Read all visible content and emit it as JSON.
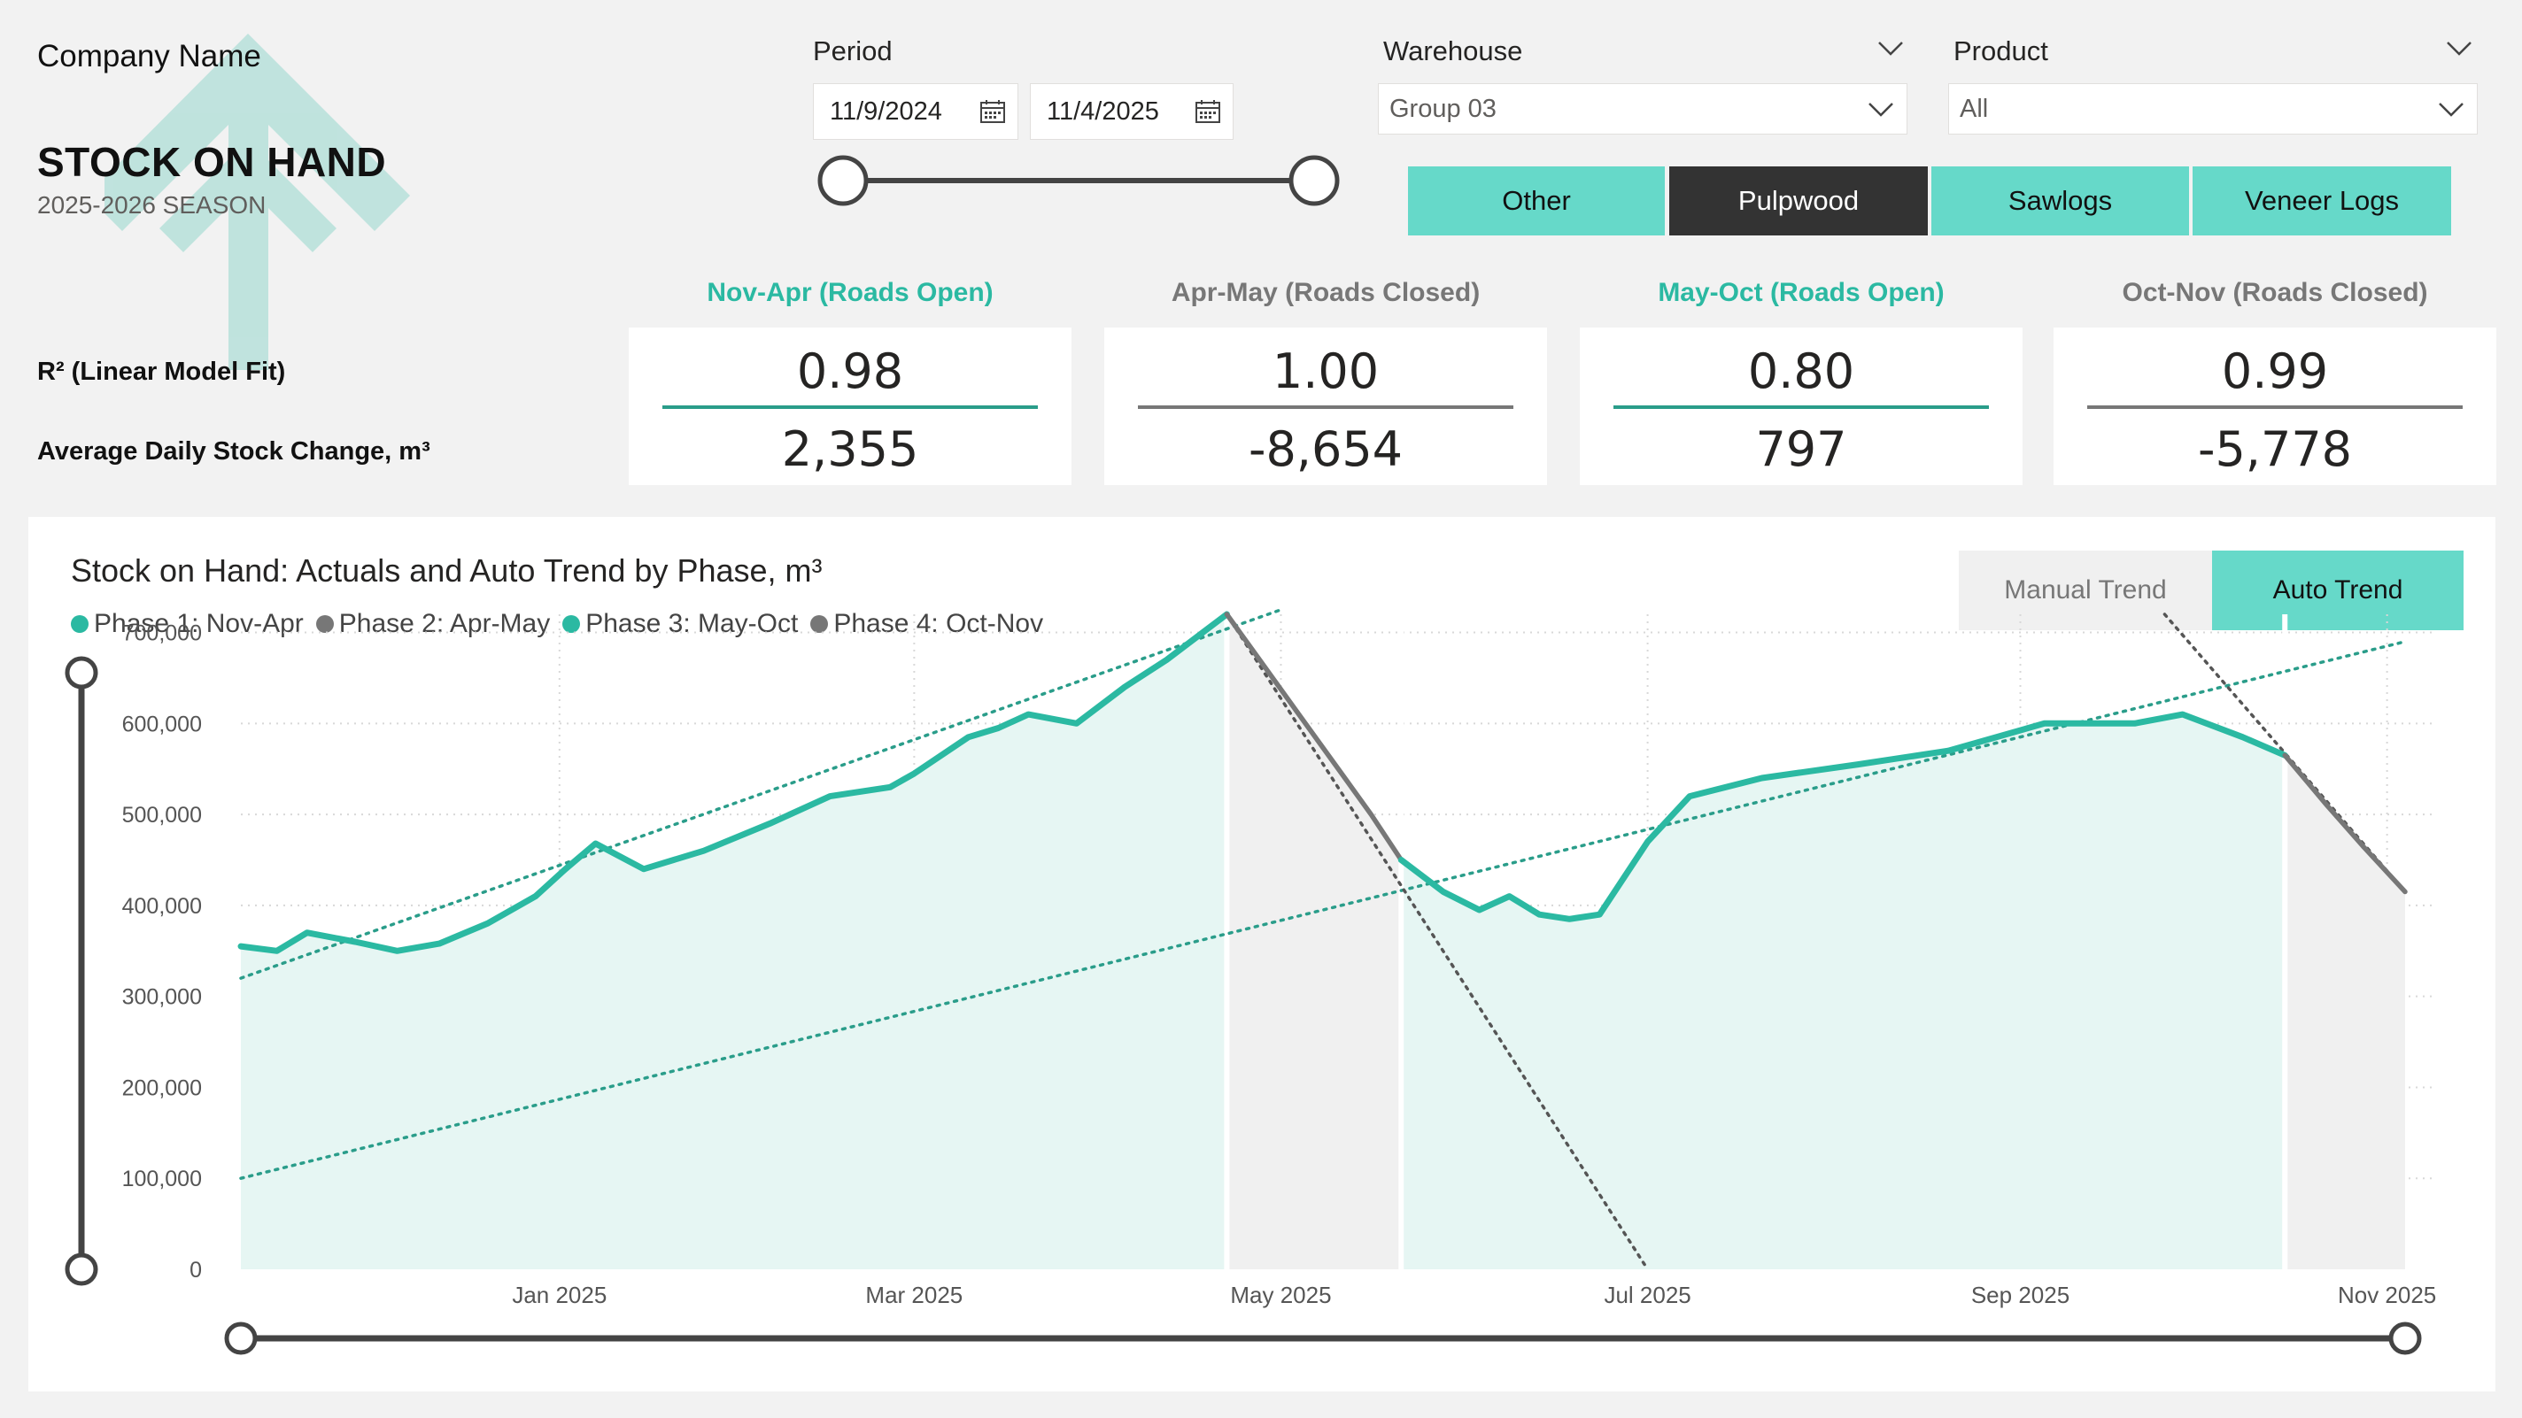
{
  "brand": {
    "company": "Company Name",
    "title": "STOCK ON HAND",
    "season": "2025-2026 SEASON"
  },
  "period": {
    "label": "Period",
    "start": "11/9/2024",
    "end": "11/4/2025"
  },
  "warehouse": {
    "label": "Warehouse",
    "value": "Group 03"
  },
  "product": {
    "label": "Product",
    "value": "All"
  },
  "product_buttons": [
    {
      "label": "Other",
      "active": false
    },
    {
      "label": "Pulpwood",
      "active": true
    },
    {
      "label": "Sawlogs",
      "active": false
    },
    {
      "label": "Veneer Logs",
      "active": false
    }
  ],
  "kpi": {
    "row1_label": "R² (Linear Model Fit)",
    "row2_label": "Average Daily Stock Change, m³",
    "phases": [
      {
        "title": "Nov-Apr (Roads Open)",
        "r2": "0.98",
        "avg": "2,355",
        "color": "#2bb9a2"
      },
      {
        "title": "Apr-May (Roads Closed)",
        "r2": "1.00",
        "avg": "-8,654",
        "color": "#777777"
      },
      {
        "title": "May-Oct (Roads Open)",
        "r2": "0.80",
        "avg": "797",
        "color": "#2bb9a2"
      },
      {
        "title": "Oct-Nov (Roads Closed)",
        "r2": "0.99",
        "avg": "-5,778",
        "color": "#777777"
      }
    ]
  },
  "chart_panel": {
    "title": "Stock on Hand: Actuals and Auto Trend by Phase, m³",
    "toggle_manual": "Manual Trend",
    "toggle_auto": "Auto Trend",
    "active_toggle": "Auto Trend"
  },
  "colors": {
    "teal": "#2bb9a2",
    "teal_button": "#66d9c9",
    "grey": "#777777",
    "dark_button": "#333333"
  },
  "chart_data": {
    "type": "area",
    "title": "Stock on Hand: Actuals and Auto Trend by Phase, m³",
    "xlabel": "",
    "ylabel": "",
    "xlim": [
      "2024-11-09",
      "2025-11-04"
    ],
    "ylim": [
      0,
      720000
    ],
    "y_ticks": [
      "700,000",
      "600,000",
      "500,000",
      "400,000",
      "300,000",
      "200,000",
      "100,000",
      "0"
    ],
    "y_tick_values": [
      700000,
      600000,
      500000,
      400000,
      300000,
      200000,
      100000,
      0
    ],
    "x_ticks": [
      "Jan 2025",
      "Mar 2025",
      "May 2025",
      "Jul 2025",
      "Sep 2025",
      "Nov 2025"
    ],
    "x_tick_dates": [
      "2025-01-01",
      "2025-03-01",
      "2025-05-01",
      "2025-07-01",
      "2025-09-01",
      "2025-11-01"
    ],
    "legend_position": "top-left",
    "grid": true,
    "series": [
      {
        "name": "Phase 1: Nov-Apr",
        "color": "#2bb9a2",
        "x": [
          "2024-11-09",
          "2024-11-15",
          "2024-11-20",
          "2024-11-28",
          "2024-12-05",
          "2024-12-12",
          "2024-12-20",
          "2024-12-28",
          "2025-01-02",
          "2025-01-07",
          "2025-01-15",
          "2025-01-25",
          "2025-02-05",
          "2025-02-15",
          "2025-02-25",
          "2025-03-01",
          "2025-03-10",
          "2025-03-15",
          "2025-03-20",
          "2025-03-28",
          "2025-04-05",
          "2025-04-12",
          "2025-04-18",
          "2025-04-22"
        ],
        "values": [
          355000,
          350000,
          370000,
          360000,
          350000,
          358000,
          380000,
          410000,
          440000,
          468000,
          440000,
          460000,
          490000,
          520000,
          530000,
          545000,
          585000,
          595000,
          610000,
          600000,
          640000,
          670000,
          700000,
          720000
        ]
      },
      {
        "name": "Phase 2: Apr-May",
        "color": "#777777",
        "x": [
          "2025-04-22",
          "2025-04-28",
          "2025-05-04",
          "2025-05-10",
          "2025-05-16",
          "2025-05-21"
        ],
        "values": [
          720000,
          665000,
          610000,
          555000,
          500000,
          450000
        ]
      },
      {
        "name": "Phase 3: May-Oct",
        "color": "#2bb9a2",
        "x": [
          "2025-05-21",
          "2025-05-28",
          "2025-06-03",
          "2025-06-08",
          "2025-06-13",
          "2025-06-18",
          "2025-06-23",
          "2025-07-01",
          "2025-07-08",
          "2025-07-20",
          "2025-08-05",
          "2025-08-20",
          "2025-09-05",
          "2025-09-20",
          "2025-09-28",
          "2025-10-08",
          "2025-10-15"
        ],
        "values": [
          450000,
          415000,
          395000,
          410000,
          390000,
          385000,
          390000,
          470000,
          520000,
          540000,
          555000,
          570000,
          600000,
          600000,
          610000,
          585000,
          565000
        ]
      },
      {
        "name": "Phase 4: Oct-Nov",
        "color": "#777777",
        "x": [
          "2025-10-15",
          "2025-10-22",
          "2025-10-28",
          "2025-11-04"
        ],
        "values": [
          565000,
          510000,
          465000,
          415000
        ]
      }
    ],
    "trend_lines": [
      {
        "phase": "Phase 1: Nov-Apr",
        "x": [
          "2024-11-09",
          "2025-05-01"
        ],
        "values": [
          320000,
          725000
        ]
      },
      {
        "phase": "Phase 3: May-Oct",
        "x": [
          "2024-11-09",
          "2025-11-04"
        ],
        "values": [
          100000,
          690000
        ]
      },
      {
        "phase": "Phase 2: Apr-May",
        "x": [
          "2025-04-22",
          "2025-07-01"
        ],
        "values": [
          720000,
          0
        ]
      },
      {
        "phase": "Phase 4: Oct-Nov",
        "x": [
          "2025-09-25",
          "2025-11-04"
        ],
        "values": [
          720000,
          415000
        ]
      }
    ]
  }
}
